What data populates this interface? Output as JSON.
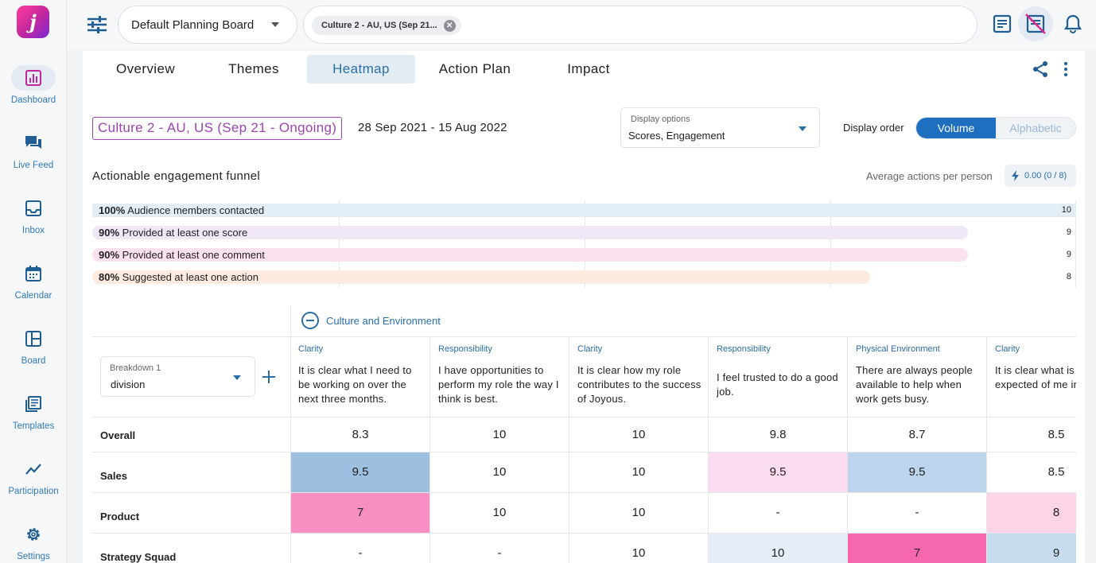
{
  "app": {
    "logo_letter": "j"
  },
  "sidebar": {
    "items": [
      {
        "label": "Dashboard",
        "icon": "bar-chart-icon"
      },
      {
        "label": "Live Feed",
        "icon": "chat-icon"
      },
      {
        "label": "Inbox",
        "icon": "inbox-icon"
      },
      {
        "label": "Calendar",
        "icon": "calendar-icon"
      },
      {
        "label": "Board",
        "icon": "board-icon"
      },
      {
        "label": "Templates",
        "icon": "templates-icon"
      },
      {
        "label": "Participation",
        "icon": "trend-icon"
      },
      {
        "label": "Settings",
        "icon": "gear-icon"
      }
    ]
  },
  "topbar": {
    "board_select": "Default Planning Board",
    "chip": "Culture 2 - AU, US (Sep 21..."
  },
  "tabs": [
    "Overview",
    "Themes",
    "Heatmap",
    "Action Plan",
    "Impact"
  ],
  "active_tab": "Heatmap",
  "campaign": {
    "title": "Culture 2 - AU, US (Sep 21 - Ongoing)",
    "date_range": "28 Sep 2021 - 15 Aug 2022"
  },
  "display_options": {
    "label": "Display options",
    "value": "Scores, Engagement"
  },
  "display_order": {
    "label": "Display order",
    "options": [
      "Volume",
      "Alphabetic"
    ],
    "selected": "Volume"
  },
  "funnel": {
    "title": "Actionable engagement funnel",
    "avg_label": "Average actions per person",
    "avg_value": "0.00 (0 / 8)",
    "max_count": 10,
    "rows": [
      {
        "pct": "100%",
        "label": "Audience members contacted",
        "count": 10,
        "color": "#e3edf5"
      },
      {
        "pct": "90%",
        "label": "Provided at least one score",
        "count": 9,
        "color": "#efe7f6"
      },
      {
        "pct": "90%",
        "label": "Provided at least one comment",
        "count": 9,
        "color": "#fbe1ef"
      },
      {
        "pct": "80%",
        "label": "Suggested at least one action",
        "count": 8,
        "color": "#fdebe0"
      }
    ]
  },
  "heatmap": {
    "theme": "Culture and Environment",
    "breakdown": {
      "label": "Breakdown 1",
      "value": "division"
    },
    "questions": [
      {
        "category": "Clarity",
        "text": "It is clear what I need to be working on over the next three months."
      },
      {
        "category": "Responsibility",
        "text": "I have opportunities to perform my role the way I think is best."
      },
      {
        "category": "Clarity",
        "text": "It is clear how my role contributes to the success of Joyous."
      },
      {
        "category": "Responsibility",
        "text": "I feel trusted to do a good job."
      },
      {
        "category": "Physical Environment",
        "text": "There are always people available to help when work gets busy."
      },
      {
        "category": "Clarity",
        "text": "It is clear what is expected of me in my role."
      }
    ],
    "rows": [
      {
        "label": "Overall",
        "values": [
          "8.3",
          "10",
          "10",
          "9.8",
          "8.7",
          "8.5"
        ],
        "colors": [
          "",
          "",
          "",
          "",
          "",
          ""
        ]
      },
      {
        "label": "Sales",
        "values": [
          "9.5",
          "10",
          "10",
          "9.5",
          "9.5",
          "8.5"
        ],
        "colors": [
          "#9dbfe0",
          "",
          "",
          "#fbdcef",
          "#bcd5ec",
          ""
        ]
      },
      {
        "label": "Product",
        "values": [
          "7",
          "10",
          "10",
          "-",
          "-",
          "8"
        ],
        "colors": [
          "#f88fc3",
          "",
          "",
          "",
          "",
          "#fbd4e8"
        ]
      },
      {
        "label": "Strategy Squad",
        "values": [
          "-",
          "-",
          "10",
          "10",
          "7",
          "9"
        ],
        "colors": [
          "",
          "",
          "",
          "#e5eef7",
          "#f668ad",
          "#c6dbee"
        ]
      }
    ]
  },
  "colors": {
    "accent": "#2a6ea8",
    "purple": "#9c44b0",
    "toggle_on": "#1f6fc0"
  }
}
